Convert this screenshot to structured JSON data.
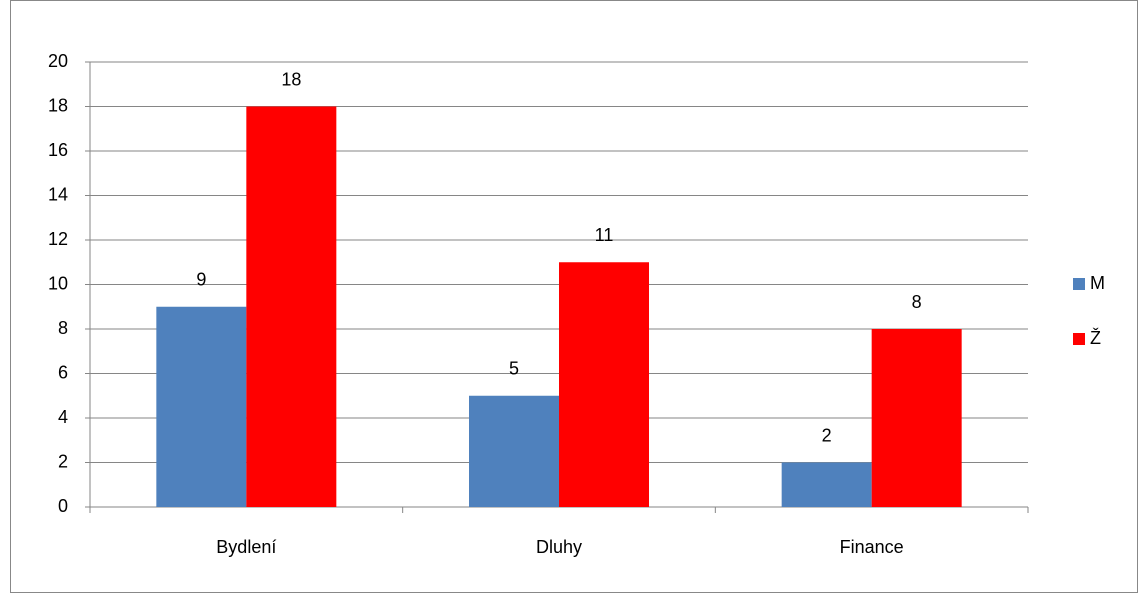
{
  "chart_data": {
    "type": "bar",
    "categories": [
      "Bydlení",
      "Dluhy",
      "Finance"
    ],
    "series": [
      {
        "name": "M",
        "color": "#4f81bd",
        "values": [
          9,
          5,
          2
        ]
      },
      {
        "name": "Ž",
        "color": "#ff0000",
        "values": [
          18,
          11,
          8
        ]
      }
    ],
    "ylim": [
      0,
      20
    ],
    "yticks": [
      0,
      2,
      4,
      6,
      8,
      10,
      12,
      14,
      16,
      18,
      20
    ],
    "grid": true,
    "legend": "right"
  }
}
